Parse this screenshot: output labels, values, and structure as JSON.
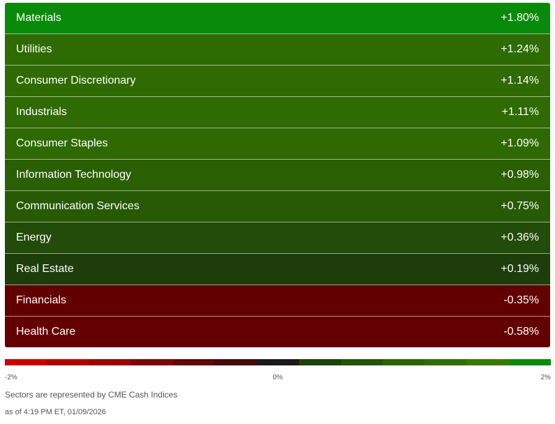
{
  "sectors": [
    {
      "name": "Materials",
      "change": "+1.80%",
      "color": "#0a8a0a"
    },
    {
      "name": "Utilities",
      "change": "+1.24%",
      "color": "#2e6b02"
    },
    {
      "name": "Consumer Discretionary",
      "change": "+1.14%",
      "color": "#2f6a02"
    },
    {
      "name": "Industrials",
      "change": "+1.11%",
      "color": "#2f6a02"
    },
    {
      "name": "Consumer Staples",
      "change": "+1.09%",
      "color": "#2e6902"
    },
    {
      "name": "Information Technology",
      "change": "+0.98%",
      "color": "#2a5f03"
    },
    {
      "name": "Communication Services",
      "change": "+0.75%",
      "color": "#285a05"
    },
    {
      "name": "Energy",
      "change": "+0.36%",
      "color": "#234b09"
    },
    {
      "name": "Real Estate",
      "change": "+0.19%",
      "color": "#1d3e0b"
    },
    {
      "name": "Financials",
      "change": "-0.35%",
      "color": "#620000"
    },
    {
      "name": "Health Care",
      "change": "-0.58%",
      "color": "#650000"
    }
  ],
  "scale": {
    "colors": [
      "#cc0000",
      "#b00202",
      "#9a0404",
      "#7c0606",
      "#5e0808",
      "#420a0a",
      "#1a1a1a",
      "#1d4207",
      "#235409",
      "#2a6206",
      "#2f6e04",
      "#377a02",
      "#0c8a0c"
    ],
    "min_label": "-2%",
    "mid_label": "0%",
    "max_label": "2%"
  },
  "note": "Sectors are represented by CME Cash Indices",
  "timestamp": "as of 4:19 PM ET, 01/09/2026"
}
